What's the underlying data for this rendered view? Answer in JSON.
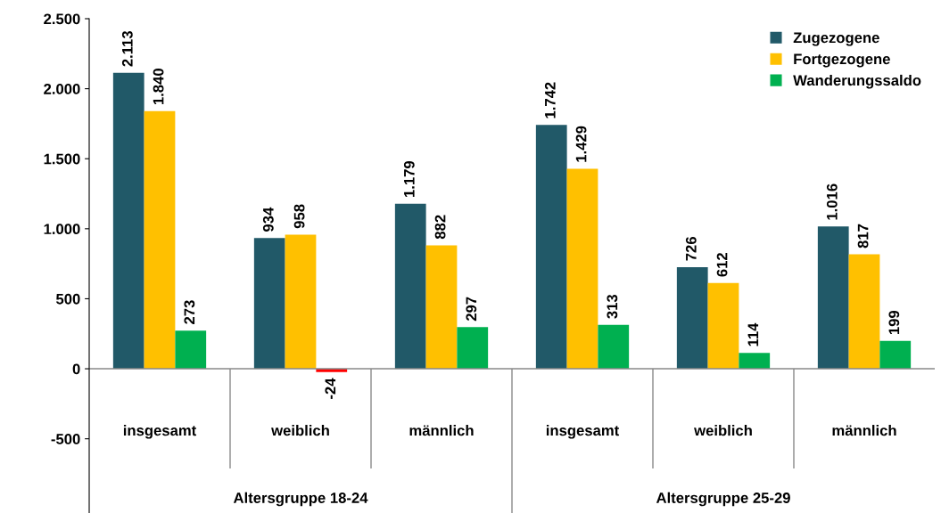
{
  "chart_data": {
    "type": "bar",
    "categories": [
      "insgesamt",
      "weiblich",
      "männlich",
      "insgesamt",
      "weiblich",
      "männlich"
    ],
    "series": [
      {
        "name": "Zugezogene",
        "color": "#215968",
        "values": [
          2113,
          934,
          1179,
          1742,
          726,
          1016
        ],
        "value_labels": [
          "2.113",
          "934",
          "1.179",
          "1.742",
          "726",
          "1.016"
        ]
      },
      {
        "name": "Fortgezogene",
        "color": "#ffc000",
        "values": [
          1840,
          958,
          882,
          1429,
          612,
          817
        ],
        "value_labels": [
          "1.840",
          "958",
          "882",
          "1.429",
          "612",
          "817"
        ]
      },
      {
        "name": "Wanderungssaldo",
        "color": "#00b050",
        "colors": [
          "#00b050",
          "#ff0000",
          "#00b050",
          "#00b050",
          "#00b050",
          "#00b050"
        ],
        "values": [
          273,
          -24,
          297,
          313,
          114,
          199
        ],
        "value_labels": [
          "273",
          "-24",
          "297",
          "313",
          "114",
          "199"
        ]
      }
    ],
    "annotations": [
      "Altersgruppe 18-24",
      "Altersgruppe 25-29"
    ],
    "ylim": [
      -1030,
      2500
    ],
    "yticks": [
      {
        "value": -500,
        "label": "-500"
      },
      {
        "value": 0,
        "label": "0"
      },
      {
        "value": 500,
        "label": "500"
      },
      {
        "value": 1000,
        "label": "1.000"
      },
      {
        "value": 1500,
        "label": "1.500"
      },
      {
        "value": 2000,
        "label": "2.000"
      },
      {
        "value": 2500,
        "label": "2.500"
      }
    ],
    "ref_lines": [
      {
        "axis": "y",
        "value": 0,
        "color": "#888888"
      }
    ],
    "legend": "top right",
    "grid": false
  }
}
